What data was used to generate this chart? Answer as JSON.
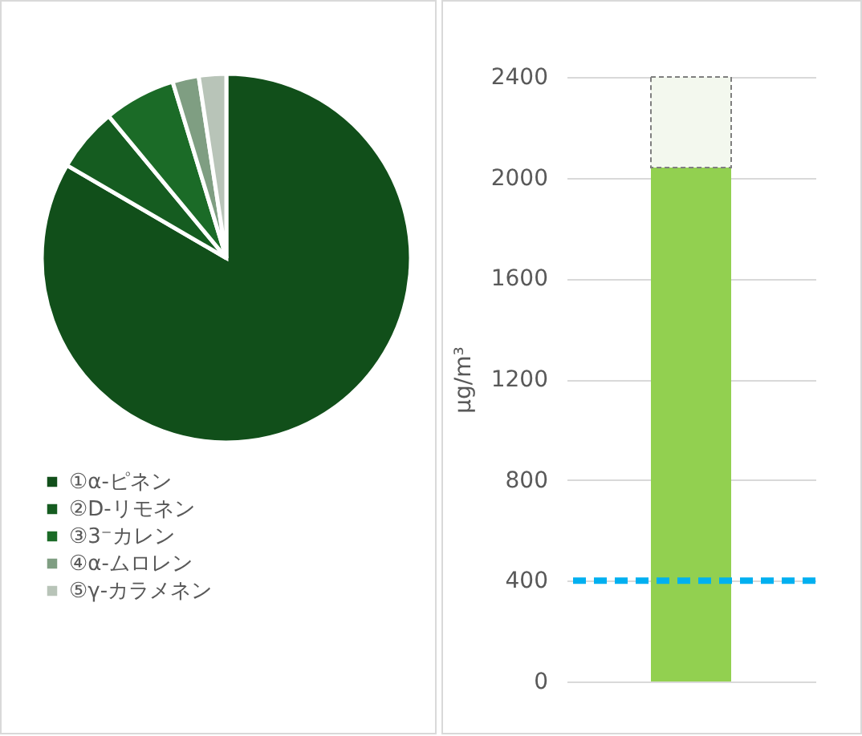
{
  "chart_data": [
    {
      "type": "pie",
      "categories": [
        "①α-ピネン",
        "②D-リモネン",
        "③3⁻カレン",
        "④α-ムロレン",
        "⑤γ-カラメネン"
      ],
      "values": [
        83.4,
        5.6,
        6.3,
        2.3,
        2.4
      ],
      "colors": [
        "#114f1a",
        "#155c20",
        "#1b6b27",
        "#7f9e82",
        "#b8c4b8"
      ],
      "legend": "bottom"
    },
    {
      "type": "bar",
      "categories": [
        null
      ],
      "ylabel": "μg/m³",
      "stacked": true,
      "series": [
        {
          "color": "#92d050",
          "values": [
            2040
          ]
        },
        {
          "color": "#f3f8ee",
          "values": [
            360
          ],
          "line_style": "dashed"
        }
      ],
      "ylim": [
        0,
        2400
      ],
      "yticks": [
        0,
        400,
        800,
        1200,
        1600,
        2000,
        2400
      ],
      "grid": "y",
      "ref_lines": [
        {
          "axis": "y",
          "value": 400,
          "color": "#00b0f0",
          "line_style": "dashed"
        }
      ]
    }
  ]
}
